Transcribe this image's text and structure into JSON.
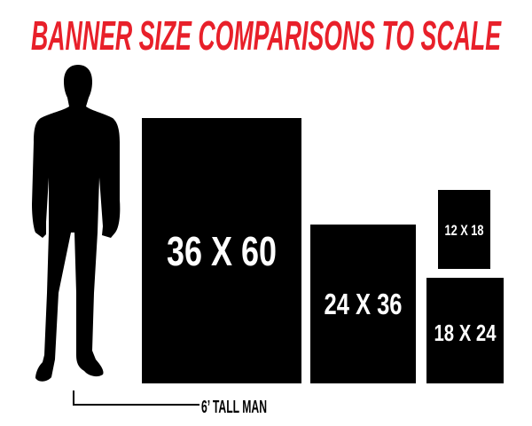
{
  "title": "BANNER SIZE COMPARISONS TO SCALE",
  "colors": {
    "title": "#e8202a",
    "banner": "#000000"
  },
  "figure": {
    "icon": "man-silhouette-icon",
    "caption": "6’ TALL MAN"
  },
  "banners": [
    {
      "label": "36 X 60",
      "width_in": 36,
      "height_in": 60
    },
    {
      "label": "24 X 36",
      "width_in": 24,
      "height_in": 36
    },
    {
      "label": "12 X 18",
      "width_in": 12,
      "height_in": 18
    },
    {
      "label": "18 X 24",
      "width_in": 18,
      "height_in": 24
    }
  ]
}
